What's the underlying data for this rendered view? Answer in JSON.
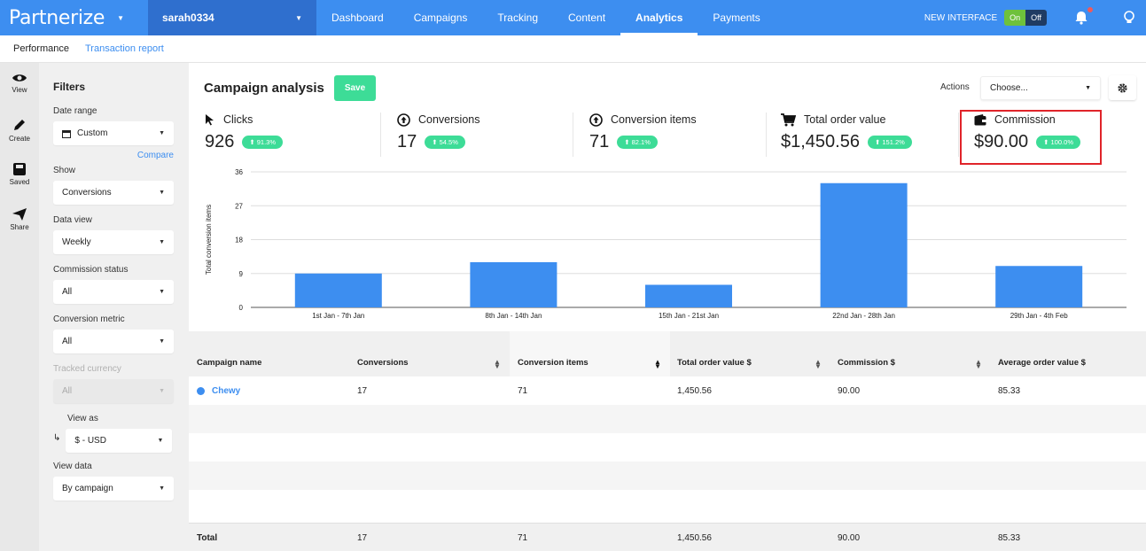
{
  "brand": {
    "logo": "Partnerize",
    "user": "sarah0334",
    "accent": "#3d8ef0",
    "save_color": "#3ddc97",
    "highlight_color": "#e0242a"
  },
  "nav": {
    "items": [
      "Dashboard",
      "Campaigns",
      "Tracking",
      "Content",
      "Analytics",
      "Payments"
    ],
    "active": "Analytics"
  },
  "topright": {
    "new_interface": "NEW INTERFACE",
    "on": "On",
    "off": "Off"
  },
  "subnav": {
    "performance": "Performance",
    "transaction_report": "Transaction report"
  },
  "rail": {
    "view": "View",
    "create": "Create",
    "saved": "Saved",
    "share": "Share"
  },
  "filters": {
    "title": "Filters",
    "date_range_label": "Date range",
    "date_range_value": "Custom",
    "compare": "Compare",
    "show_label": "Show",
    "show_value": "Conversions",
    "data_view_label": "Data view",
    "data_view_value": "Weekly",
    "commission_status_label": "Commission status",
    "commission_status_value": "All",
    "conversion_metric_label": "Conversion metric",
    "conversion_metric_value": "All",
    "tracked_currency_label": "Tracked currency",
    "tracked_currency_value": "All",
    "view_as_label": "View as",
    "view_as_value": "$ - USD",
    "view_data_label": "View data",
    "view_data_value": "By campaign"
  },
  "header": {
    "title": "Campaign analysis",
    "save": "Save",
    "actions_label": "Actions",
    "actions_placeholder": "Choose..."
  },
  "metrics": [
    {
      "label": "Clicks",
      "value": "926",
      "change": "91.3%",
      "icon": "cursor-icon"
    },
    {
      "label": "Conversions",
      "value": "17",
      "change": "54.5%",
      "icon": "up-arrow-circle-icon"
    },
    {
      "label": "Conversion items",
      "value": "71",
      "change": "82.1%",
      "icon": "up-arrow-circle-icon"
    },
    {
      "label": "Total order value",
      "value": "$1,450.56",
      "change": "151.2%",
      "icon": "cart-icon"
    },
    {
      "label": "Commission",
      "value": "$90.00",
      "change": "100.0%",
      "icon": "wallet-icon"
    }
  ],
  "chart_data": {
    "type": "bar",
    "ylabel": "Total conversion items",
    "xlabel": "",
    "categories": [
      "1st Jan - 7th Jan",
      "8th Jan - 14th Jan",
      "15th Jan - 21st Jan",
      "22nd Jan - 28th Jan",
      "29th Jan - 4th Feb"
    ],
    "values": [
      9,
      12,
      6,
      33,
      11
    ],
    "ylim": [
      0,
      36
    ],
    "yticks": [
      0,
      9,
      18,
      27,
      36
    ],
    "grid": true,
    "color": "#3d8ef0"
  },
  "table": {
    "columns": [
      "Campaign name",
      "Conversions",
      "Conversion items",
      "Total order value $",
      "Commission $",
      "Average order value $"
    ],
    "rows": [
      {
        "campaign": "Chewy",
        "conversions": "17",
        "items": "71",
        "order_value": "1,450.56",
        "commission": "90.00",
        "avg_order": "85.33"
      }
    ],
    "total": {
      "label": "Total",
      "conversions": "17",
      "items": "71",
      "order_value": "1,450.56",
      "commission": "90.00",
      "avg_order": "85.33"
    }
  }
}
